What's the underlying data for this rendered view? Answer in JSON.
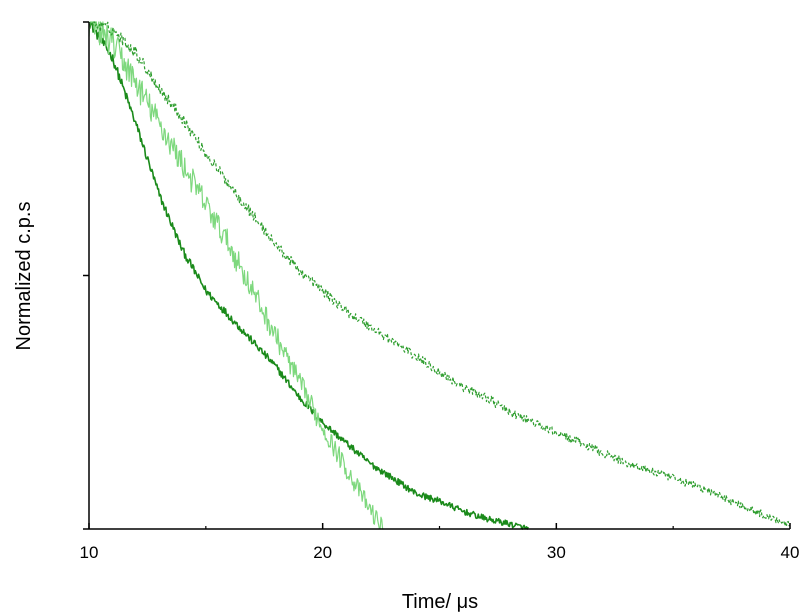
{
  "chart_data": {
    "type": "line",
    "xlabel": "Time/ μs",
    "ylabel": "Normalized c.p.s",
    "xlim": [
      10,
      40
    ],
    "ylim": [
      0,
      1
    ],
    "x_ticks": [
      10,
      20,
      30,
      40
    ],
    "grid": false,
    "legend": "none",
    "series": [
      {
        "color": "#1a8a1a",
        "style": "solid",
        "noise": 0.01,
        "x": [
          10,
          11,
          12,
          13,
          14,
          15,
          16,
          17,
          18,
          19,
          20,
          21,
          22,
          23,
          24,
          25,
          26,
          27,
          28,
          28.8
        ],
        "y": [
          1.0,
          0.93,
          0.8,
          0.66,
          0.55,
          0.47,
          0.42,
          0.37,
          0.32,
          0.26,
          0.21,
          0.17,
          0.13,
          0.1,
          0.07,
          0.055,
          0.035,
          0.02,
          0.01,
          0.0
        ]
      },
      {
        "color": "#7ed87e",
        "style": "solid",
        "noise": 0.03,
        "x": [
          10,
          11,
          12,
          13,
          14,
          15,
          16,
          17,
          18,
          19,
          20,
          21,
          22,
          22.6
        ],
        "y": [
          1.0,
          0.96,
          0.88,
          0.8,
          0.72,
          0.64,
          0.56,
          0.47,
          0.38,
          0.29,
          0.2,
          0.12,
          0.04,
          0.0
        ]
      },
      {
        "color": "#2f9e2f",
        "style": "dashed",
        "noise": 0.012,
        "x": [
          10,
          11,
          12,
          13,
          14,
          15,
          16,
          17,
          18,
          19,
          20,
          21,
          22,
          23,
          24,
          25,
          26,
          27,
          28,
          29,
          30,
          31,
          32,
          33,
          34,
          35,
          36,
          37,
          38,
          39,
          40
        ],
        "y": [
          1.0,
          0.985,
          0.94,
          0.87,
          0.81,
          0.74,
          0.68,
          0.62,
          0.56,
          0.51,
          0.47,
          0.43,
          0.4,
          0.37,
          0.34,
          0.31,
          0.28,
          0.26,
          0.23,
          0.21,
          0.19,
          0.17,
          0.15,
          0.13,
          0.115,
          0.1,
          0.085,
          0.065,
          0.045,
          0.025,
          0.01
        ]
      }
    ]
  }
}
